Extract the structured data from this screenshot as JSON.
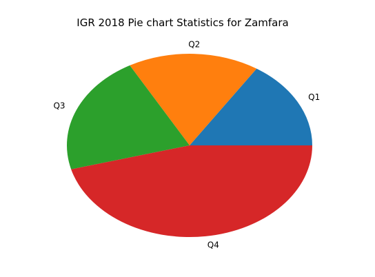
{
  "chart_data": {
    "type": "pie",
    "title": "IGR 2018 Pie chart Statistics for Zamfara",
    "categories": [
      "Q1",
      "Q2",
      "Q3",
      "Q4"
    ],
    "values": [
      15.8,
      17.3,
      21.1,
      45.8
    ],
    "colors": [
      "#1f77b4",
      "#ff7f0e",
      "#2ca02c",
      "#d62728"
    ],
    "start_angle_deg": 0,
    "direction": "counterclockwise",
    "legend": "none"
  }
}
